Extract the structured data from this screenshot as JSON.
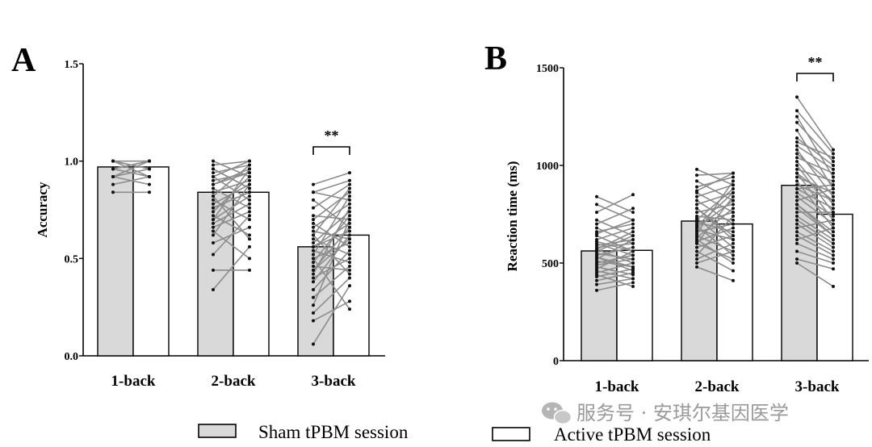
{
  "legend": {
    "sham_label": "Sham tPBM session",
    "active_label": "Active tPBM session"
  },
  "colors": {
    "sham_fill": "#d9d9d9",
    "active_fill": "#ffffff",
    "bar_stroke": "#000000",
    "line": "#8c8c8c",
    "point": "#111111"
  },
  "watermark": "服务号 · 安琪尔基因医学",
  "chart_data": [
    {
      "type": "bar",
      "panel": "A",
      "title": "",
      "xlabel": "",
      "ylabel": "Accuracy",
      "ylim": [
        0,
        1.5
      ],
      "yticks": [
        0.0,
        0.5,
        1.0,
        1.5
      ],
      "ytick_labels": [
        "0.0",
        "0.5",
        "1.0",
        "1.5"
      ],
      "grid": false,
      "legend_position": "bottom",
      "categories": [
        "1-back",
        "2-back",
        "3-back"
      ],
      "series": [
        {
          "name": "Sham tPBM session",
          "values": [
            0.97,
            0.84,
            0.56
          ]
        },
        {
          "name": "Active tPBM session",
          "values": [
            0.97,
            0.84,
            0.62
          ]
        }
      ],
      "significance": [
        {
          "category": "3-back",
          "label": "**"
        }
      ],
      "paired_points": [
        {
          "category": "1-back",
          "sham": [
            1.0,
            1.0,
            0.96,
            0.96,
            0.92,
            0.92,
            0.88,
            0.84,
            1.0,
            0.96,
            0.92,
            1.0
          ],
          "active": [
            1.0,
            0.96,
            1.0,
            0.92,
            0.96,
            0.88,
            0.92,
            0.84,
            0.96,
            1.0,
            1.0,
            0.92
          ]
        },
        {
          "category": "2-back",
          "sham": [
            1.0,
            0.98,
            0.96,
            0.94,
            0.92,
            0.9,
            0.88,
            0.86,
            0.84,
            0.82,
            0.8,
            0.78,
            0.76,
            0.74,
            0.72,
            0.7,
            0.68,
            0.66,
            0.62,
            0.58,
            0.52,
            0.44,
            0.34,
            0.92,
            0.96,
            0.88,
            0.82,
            0.76,
            0.7,
            0.64
          ],
          "active": [
            0.92,
            1.0,
            0.86,
            0.98,
            0.8,
            0.94,
            0.96,
            0.76,
            0.9,
            0.98,
            0.7,
            0.88,
            0.84,
            0.92,
            0.62,
            0.82,
            0.78,
            0.74,
            0.88,
            0.66,
            0.72,
            0.44,
            0.56,
            1.0,
            0.86,
            0.94,
            0.6,
            0.84,
            0.96,
            0.5
          ]
        },
        {
          "category": "3-back",
          "sham": [
            0.88,
            0.84,
            0.8,
            0.76,
            0.72,
            0.7,
            0.68,
            0.66,
            0.64,
            0.62,
            0.6,
            0.58,
            0.56,
            0.54,
            0.52,
            0.5,
            0.48,
            0.46,
            0.44,
            0.42,
            0.4,
            0.38,
            0.34,
            0.3,
            0.26,
            0.22,
            0.18,
            0.06,
            0.84,
            0.62,
            0.56,
            0.5,
            0.44
          ],
          "active": [
            0.94,
            0.9,
            0.66,
            0.88,
            0.7,
            0.84,
            0.56,
            0.78,
            0.6,
            0.86,
            0.52,
            0.74,
            0.64,
            0.48,
            0.82,
            0.58,
            0.72,
            0.44,
            0.66,
            0.76,
            0.5,
            0.62,
            0.54,
            0.46,
            0.7,
            0.4,
            0.28,
            0.36,
            0.8,
            0.42,
            0.68,
            0.24,
            0.6
          ]
        }
      ]
    },
    {
      "type": "bar",
      "panel": "B",
      "title": "",
      "xlabel": "",
      "ylabel": "Reaction time (ms)",
      "ylim": [
        0,
        1500
      ],
      "yticks": [
        0,
        500,
        1000,
        1500
      ],
      "ytick_labels": [
        "0",
        "500",
        "1000",
        "1500"
      ],
      "grid": false,
      "legend_position": "bottom",
      "categories": [
        "1-back",
        "2-back",
        "3-back"
      ],
      "series": [
        {
          "name": "Sham tPBM session",
          "values": [
            562,
            715,
            898
          ]
        },
        {
          "name": "Active tPBM session",
          "values": [
            565,
            700,
            750
          ]
        }
      ],
      "significance": [
        {
          "category": "3-back",
          "label": "**"
        }
      ],
      "paired_points": [
        {
          "category": "1-back",
          "sham": [
            840,
            800,
            760,
            720,
            700,
            680,
            660,
            640,
            620,
            600,
            590,
            580,
            570,
            560,
            550,
            540,
            530,
            520,
            510,
            500,
            490,
            480,
            470,
            460,
            450,
            440,
            430,
            410,
            390,
            360,
            650,
            610,
            570,
            530
          ],
          "active": [
            760,
            720,
            850,
            640,
            780,
            600,
            700,
            560,
            680,
            540,
            620,
            600,
            500,
            640,
            520,
            580,
            460,
            620,
            480,
            540,
            520,
            440,
            560,
            420,
            500,
            380,
            470,
            450,
            420,
            400,
            720,
            560,
            660,
            480
          ]
        },
        {
          "category": "2-back",
          "sham": [
            980,
            950,
            920,
            890,
            860,
            840,
            820,
            800,
            780,
            760,
            740,
            730,
            720,
            710,
            700,
            690,
            680,
            670,
            660,
            650,
            640,
            630,
            620,
            610,
            600,
            580,
            560,
            540,
            520,
            500,
            480,
            870,
            780,
            690,
            600
          ],
          "active": [
            900,
            960,
            820,
            940,
            760,
            900,
            700,
            860,
            640,
            800,
            720,
            580,
            880,
            660,
            760,
            540,
            820,
            620,
            700,
            920,
            560,
            780,
            500,
            680,
            840,
            640,
            460,
            740,
            600,
            560,
            410,
            960,
            620,
            860,
            520
          ]
        },
        {
          "category": "3-back",
          "sham": [
            1350,
            1280,
            1250,
            1220,
            1180,
            1140,
            1100,
            1080,
            1060,
            1040,
            1020,
            1000,
            980,
            960,
            940,
            920,
            900,
            880,
            860,
            840,
            820,
            800,
            780,
            760,
            740,
            720,
            700,
            680,
            660,
            640,
            620,
            600,
            560,
            520,
            500,
            1120,
            960,
            880,
            800,
            720
          ],
          "active": [
            1080,
            1060,
            940,
            1020,
            880,
            1000,
            980,
            840,
            900,
            960,
            800,
            760,
            920,
            720,
            860,
            680,
            820,
            780,
            740,
            700,
            880,
            660,
            640,
            760,
            620,
            600,
            580,
            720,
            560,
            540,
            680,
            520,
            500,
            470,
            380,
            1040,
            820,
            900,
            640,
            600
          ]
        }
      ]
    }
  ]
}
